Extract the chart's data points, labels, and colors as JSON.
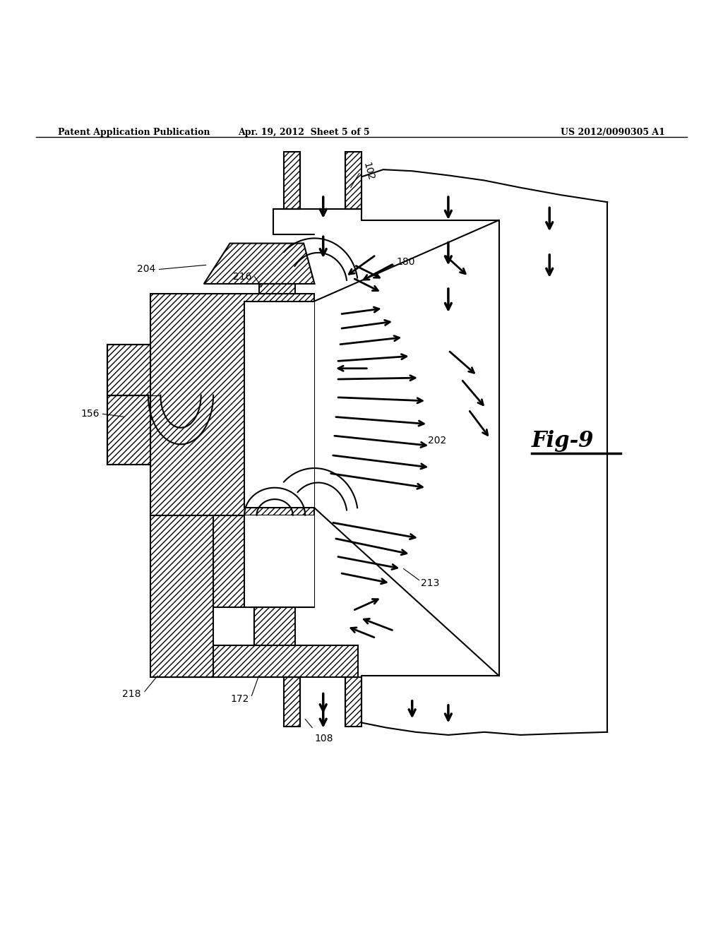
{
  "bg_color": "#ffffff",
  "line_color": "#000000",
  "header_left": "Patent Application Publication",
  "header_mid": "Apr. 19, 2012  Sheet 5 of 5",
  "header_right": "US 2012/0090305 A1",
  "fig_label": "Fig-9"
}
